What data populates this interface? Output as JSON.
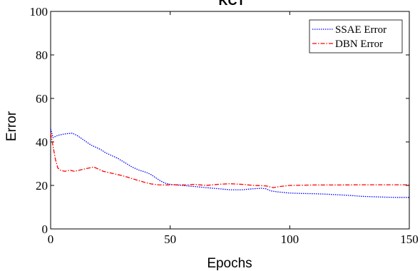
{
  "chart_data": {
    "type": "line",
    "title": "KCT",
    "xlabel": "Epochs",
    "ylabel": "Error",
    "xlim": [
      0,
      150
    ],
    "ylim": [
      0,
      100
    ],
    "xticks": [
      0,
      50,
      100,
      150
    ],
    "yticks": [
      0,
      20,
      40,
      60,
      80,
      100
    ],
    "grid": false,
    "legend_position": "top-right",
    "series": [
      {
        "name": "SSAE Error",
        "color": "#0000ff",
        "line_style": "dotted",
        "x": [
          0,
          1,
          2,
          3,
          5,
          7,
          9,
          11,
          13,
          15,
          17,
          19,
          21,
          23,
          25,
          28,
          31,
          34,
          37,
          40,
          42,
          44,
          46,
          48,
          50,
          55,
          60,
          65,
          70,
          75,
          80,
          85,
          88,
          90,
          92,
          95,
          100,
          105,
          110,
          115,
          120,
          125,
          130,
          135,
          140,
          145,
          150
        ],
        "y": [
          46,
          42,
          42.5,
          43,
          43.5,
          43.8,
          44,
          43,
          41.5,
          40,
          38.5,
          37.5,
          36.5,
          35,
          34,
          32.5,
          30.5,
          28.5,
          27,
          26,
          25,
          23.5,
          22,
          21,
          20.5,
          20,
          19.5,
          19,
          18.5,
          18,
          18,
          18.5,
          18.7,
          18.5,
          17.5,
          17,
          16.5,
          16.3,
          16.2,
          16,
          15.7,
          15.4,
          15,
          14.8,
          14.6,
          14.5,
          14.5
        ]
      },
      {
        "name": "DBN Error",
        "color": "#ff0000",
        "line_style": "dashdot",
        "x": [
          0,
          1,
          2,
          3,
          4,
          6,
          8,
          10,
          12,
          14,
          16,
          18,
          20,
          22,
          24,
          26,
          28,
          30,
          33,
          36,
          39,
          42,
          45,
          48,
          52,
          56,
          60,
          65,
          70,
          75,
          80,
          85,
          90,
          93,
          96,
          100,
          110,
          120,
          130,
          140,
          150
        ],
        "y": [
          44,
          38,
          32,
          28,
          27,
          26.5,
          27,
          26.5,
          27,
          27.5,
          28,
          28.5,
          27.5,
          26.5,
          26,
          25.5,
          25,
          24.5,
          23.5,
          22.5,
          21.5,
          20.7,
          20.3,
          20.2,
          20.3,
          20.2,
          20.5,
          20,
          20.5,
          20.8,
          20.5,
          20,
          19.8,
          19,
          19.5,
          20,
          20.2,
          20.2,
          20.3,
          20.3,
          20.3
        ]
      }
    ]
  }
}
